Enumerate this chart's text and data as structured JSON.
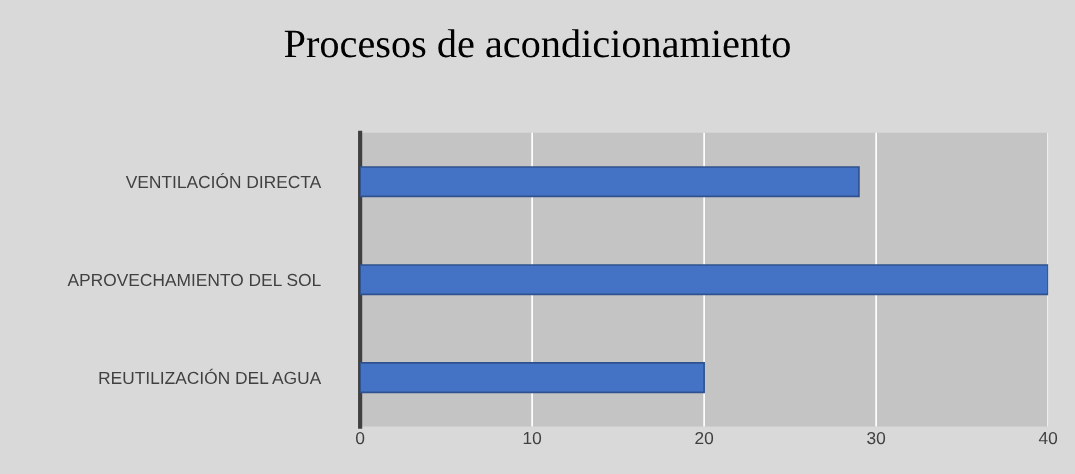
{
  "chart_data": {
    "type": "bar",
    "orientation": "horizontal",
    "title": "Procesos de acondicionamiento",
    "categories": [
      "VENTILACIÓN DIRECTA",
      "APROVECHAMIENTO DEL SOL",
      "REUTILIZACIÓN DEL AGUA"
    ],
    "values": [
      29,
      40,
      20
    ],
    "color": "#4472c4",
    "xlim": [
      0,
      40
    ],
    "xticks": [
      0,
      10,
      20,
      30,
      40
    ],
    "grid": "x",
    "legend": false
  }
}
